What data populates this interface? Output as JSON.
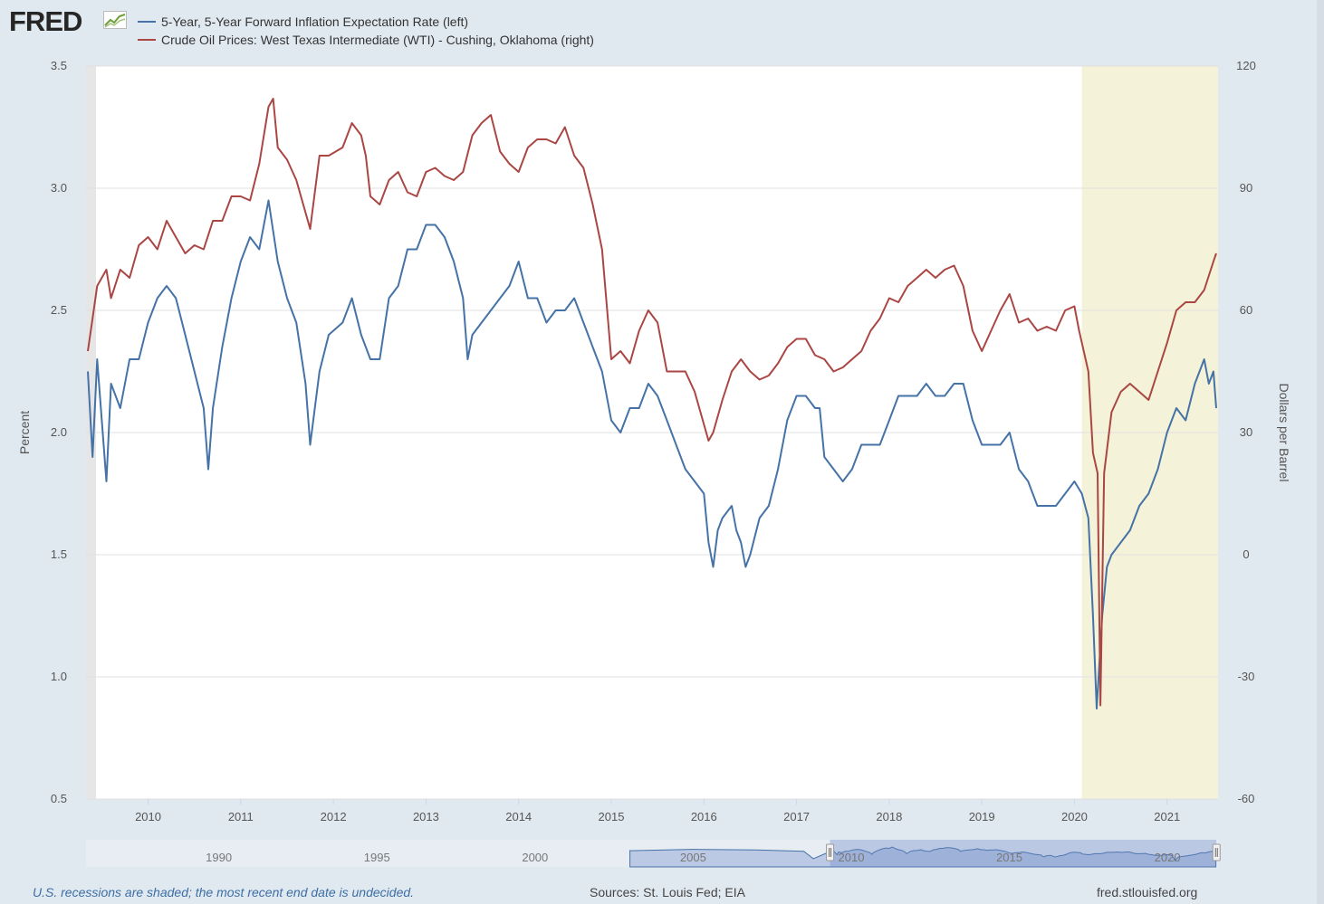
{
  "header": {
    "logo_text": "FRED",
    "logo_icon": "fred-chart-icon",
    "legend": [
      {
        "label": "5-Year, 5-Year Forward Inflation Expectation Rate (left)",
        "color": "#4572a7"
      },
      {
        "label": "Crude Oil Prices: West Texas Intermediate (WTI) - Cushing, Oklahoma (right)",
        "color": "#aa4643"
      }
    ]
  },
  "colors": {
    "plot_bg": "#ffffff",
    "page_bg": "#e1e9f0",
    "recession_shade": "#f4f2d8",
    "pre_range_shade": "#e6e6e6",
    "grid": "#e0e0e0",
    "navigator_fill": "#bcc9e4",
    "navigator_line": "#4572a7"
  },
  "chart_data": {
    "type": "line",
    "x_unit": "year",
    "xlim": [
      2009.33,
      2021.55
    ],
    "x_ticks": [
      "2010",
      "2011",
      "2012",
      "2013",
      "2014",
      "2015",
      "2016",
      "2017",
      "2018",
      "2019",
      "2020",
      "2021"
    ],
    "y_left": {
      "label": "Percent",
      "lim": [
        0.5,
        3.5
      ],
      "ticks": [
        "0.5",
        "1.0",
        "1.5",
        "2.0",
        "2.5",
        "3.0",
        "3.5"
      ]
    },
    "y_right": {
      "label": "Dollars per Barrel",
      "lim": [
        -60,
        120
      ],
      "ticks": [
        "-60",
        "-30",
        "0",
        "30",
        "60",
        "90",
        "120"
      ]
    },
    "recession_shading": [
      [
        2020.08,
        2021.55
      ]
    ],
    "grid": true,
    "legend_position": "top-left",
    "series": [
      {
        "name": "5-Year, 5-Year Forward Inflation Expectation Rate (left)",
        "axis": "left",
        "color": "#4572a7",
        "points": [
          [
            2009.35,
            2.25
          ],
          [
            2009.4,
            1.9
          ],
          [
            2009.45,
            2.3
          ],
          [
            2009.55,
            1.8
          ],
          [
            2009.6,
            2.2
          ],
          [
            2009.7,
            2.1
          ],
          [
            2009.8,
            2.3
          ],
          [
            2009.9,
            2.3
          ],
          [
            2010.0,
            2.45
          ],
          [
            2010.1,
            2.55
          ],
          [
            2010.2,
            2.6
          ],
          [
            2010.3,
            2.55
          ],
          [
            2010.4,
            2.4
          ],
          [
            2010.5,
            2.25
          ],
          [
            2010.6,
            2.1
          ],
          [
            2010.65,
            1.85
          ],
          [
            2010.7,
            2.1
          ],
          [
            2010.8,
            2.35
          ],
          [
            2010.9,
            2.55
          ],
          [
            2011.0,
            2.7
          ],
          [
            2011.1,
            2.8
          ],
          [
            2011.2,
            2.75
          ],
          [
            2011.3,
            2.95
          ],
          [
            2011.4,
            2.7
          ],
          [
            2011.5,
            2.55
          ],
          [
            2011.6,
            2.45
          ],
          [
            2011.7,
            2.2
          ],
          [
            2011.75,
            1.95
          ],
          [
            2011.85,
            2.25
          ],
          [
            2011.95,
            2.4
          ],
          [
            2012.1,
            2.45
          ],
          [
            2012.2,
            2.55
          ],
          [
            2012.3,
            2.4
          ],
          [
            2012.4,
            2.3
          ],
          [
            2012.5,
            2.3
          ],
          [
            2012.6,
            2.55
          ],
          [
            2012.7,
            2.6
          ],
          [
            2012.8,
            2.75
          ],
          [
            2012.9,
            2.75
          ],
          [
            2013.0,
            2.85
          ],
          [
            2013.1,
            2.85
          ],
          [
            2013.2,
            2.8
          ],
          [
            2013.3,
            2.7
          ],
          [
            2013.4,
            2.55
          ],
          [
            2013.45,
            2.3
          ],
          [
            2013.5,
            2.4
          ],
          [
            2013.6,
            2.45
          ],
          [
            2013.7,
            2.5
          ],
          [
            2013.8,
            2.55
          ],
          [
            2013.9,
            2.6
          ],
          [
            2014.0,
            2.7
          ],
          [
            2014.1,
            2.55
          ],
          [
            2014.2,
            2.55
          ],
          [
            2014.3,
            2.45
          ],
          [
            2014.4,
            2.5
          ],
          [
            2014.5,
            2.5
          ],
          [
            2014.6,
            2.55
          ],
          [
            2014.7,
            2.45
          ],
          [
            2014.8,
            2.35
          ],
          [
            2014.9,
            2.25
          ],
          [
            2015.0,
            2.05
          ],
          [
            2015.1,
            2.0
          ],
          [
            2015.2,
            2.1
          ],
          [
            2015.3,
            2.1
          ],
          [
            2015.4,
            2.2
          ],
          [
            2015.5,
            2.15
          ],
          [
            2015.6,
            2.05
          ],
          [
            2015.7,
            1.95
          ],
          [
            2015.8,
            1.85
          ],
          [
            2015.9,
            1.8
          ],
          [
            2016.0,
            1.75
          ],
          [
            2016.05,
            1.55
          ],
          [
            2016.1,
            1.45
          ],
          [
            2016.15,
            1.6
          ],
          [
            2016.2,
            1.65
          ],
          [
            2016.3,
            1.7
          ],
          [
            2016.35,
            1.6
          ],
          [
            2016.4,
            1.55
          ],
          [
            2016.45,
            1.45
          ],
          [
            2016.5,
            1.5
          ],
          [
            2016.6,
            1.65
          ],
          [
            2016.7,
            1.7
          ],
          [
            2016.8,
            1.85
          ],
          [
            2016.9,
            2.05
          ],
          [
            2017.0,
            2.15
          ],
          [
            2017.1,
            2.15
          ],
          [
            2017.2,
            2.1
          ],
          [
            2017.25,
            2.1
          ],
          [
            2017.3,
            1.9
          ],
          [
            2017.4,
            1.85
          ],
          [
            2017.5,
            1.8
          ],
          [
            2017.6,
            1.85
          ],
          [
            2017.7,
            1.95
          ],
          [
            2017.8,
            1.95
          ],
          [
            2017.9,
            1.95
          ],
          [
            2018.0,
            2.05
          ],
          [
            2018.1,
            2.15
          ],
          [
            2018.2,
            2.15
          ],
          [
            2018.3,
            2.15
          ],
          [
            2018.4,
            2.2
          ],
          [
            2018.5,
            2.15
          ],
          [
            2018.6,
            2.15
          ],
          [
            2018.7,
            2.2
          ],
          [
            2018.8,
            2.2
          ],
          [
            2018.9,
            2.05
          ],
          [
            2019.0,
            1.95
          ],
          [
            2019.1,
            1.95
          ],
          [
            2019.2,
            1.95
          ],
          [
            2019.3,
            2.0
          ],
          [
            2019.4,
            1.85
          ],
          [
            2019.5,
            1.8
          ],
          [
            2019.6,
            1.7
          ],
          [
            2019.7,
            1.7
          ],
          [
            2019.8,
            1.7
          ],
          [
            2019.9,
            1.75
          ],
          [
            2020.0,
            1.8
          ],
          [
            2020.08,
            1.75
          ],
          [
            2020.15,
            1.65
          ],
          [
            2020.2,
            1.25
          ],
          [
            2020.24,
            0.87
          ],
          [
            2020.3,
            1.25
          ],
          [
            2020.35,
            1.45
          ],
          [
            2020.4,
            1.5
          ],
          [
            2020.5,
            1.55
          ],
          [
            2020.6,
            1.6
          ],
          [
            2020.7,
            1.7
          ],
          [
            2020.8,
            1.75
          ],
          [
            2020.9,
            1.85
          ],
          [
            2021.0,
            2.0
          ],
          [
            2021.1,
            2.1
          ],
          [
            2021.2,
            2.05
          ],
          [
            2021.3,
            2.2
          ],
          [
            2021.4,
            2.3
          ],
          [
            2021.45,
            2.2
          ],
          [
            2021.5,
            2.25
          ],
          [
            2021.53,
            2.1
          ]
        ]
      },
      {
        "name": "Crude Oil Prices: West Texas Intermediate (WTI) - Cushing, Oklahoma (right)",
        "axis": "right",
        "color": "#aa4643",
        "points": [
          [
            2009.35,
            50
          ],
          [
            2009.4,
            58
          ],
          [
            2009.45,
            66
          ],
          [
            2009.55,
            70
          ],
          [
            2009.6,
            63
          ],
          [
            2009.7,
            70
          ],
          [
            2009.8,
            68
          ],
          [
            2009.9,
            76
          ],
          [
            2010.0,
            78
          ],
          [
            2010.1,
            75
          ],
          [
            2010.2,
            82
          ],
          [
            2010.3,
            78
          ],
          [
            2010.4,
            74
          ],
          [
            2010.5,
            76
          ],
          [
            2010.6,
            75
          ],
          [
            2010.7,
            82
          ],
          [
            2010.8,
            82
          ],
          [
            2010.9,
            88
          ],
          [
            2011.0,
            88
          ],
          [
            2011.1,
            87
          ],
          [
            2011.2,
            96
          ],
          [
            2011.3,
            110
          ],
          [
            2011.35,
            112
          ],
          [
            2011.4,
            100
          ],
          [
            2011.5,
            97
          ],
          [
            2011.6,
            92
          ],
          [
            2011.7,
            84
          ],
          [
            2011.75,
            80
          ],
          [
            2011.85,
            98
          ],
          [
            2011.95,
            98
          ],
          [
            2012.1,
            100
          ],
          [
            2012.2,
            106
          ],
          [
            2012.3,
            103
          ],
          [
            2012.35,
            98
          ],
          [
            2012.4,
            88
          ],
          [
            2012.5,
            86
          ],
          [
            2012.6,
            92
          ],
          [
            2012.7,
            94
          ],
          [
            2012.8,
            89
          ],
          [
            2012.9,
            88
          ],
          [
            2013.0,
            94
          ],
          [
            2013.1,
            95
          ],
          [
            2013.2,
            93
          ],
          [
            2013.3,
            92
          ],
          [
            2013.4,
            94
          ],
          [
            2013.5,
            103
          ],
          [
            2013.6,
            106
          ],
          [
            2013.7,
            108
          ],
          [
            2013.8,
            99
          ],
          [
            2013.9,
            96
          ],
          [
            2014.0,
            94
          ],
          [
            2014.1,
            100
          ],
          [
            2014.2,
            102
          ],
          [
            2014.3,
            102
          ],
          [
            2014.4,
            101
          ],
          [
            2014.5,
            105
          ],
          [
            2014.6,
            98
          ],
          [
            2014.7,
            95
          ],
          [
            2014.8,
            86
          ],
          [
            2014.9,
            75
          ],
          [
            2015.0,
            48
          ],
          [
            2015.1,
            50
          ],
          [
            2015.2,
            47
          ],
          [
            2015.3,
            55
          ],
          [
            2015.4,
            60
          ],
          [
            2015.5,
            57
          ],
          [
            2015.6,
            45
          ],
          [
            2015.7,
            45
          ],
          [
            2015.8,
            45
          ],
          [
            2015.9,
            40
          ],
          [
            2016.0,
            32
          ],
          [
            2016.05,
            28
          ],
          [
            2016.1,
            30
          ],
          [
            2016.2,
            38
          ],
          [
            2016.3,
            45
          ],
          [
            2016.4,
            48
          ],
          [
            2016.5,
            45
          ],
          [
            2016.6,
            43
          ],
          [
            2016.7,
            44
          ],
          [
            2016.8,
            47
          ],
          [
            2016.9,
            51
          ],
          [
            2017.0,
            53
          ],
          [
            2017.1,
            53
          ],
          [
            2017.2,
            49
          ],
          [
            2017.3,
            48
          ],
          [
            2017.4,
            45
          ],
          [
            2017.5,
            46
          ],
          [
            2017.6,
            48
          ],
          [
            2017.7,
            50
          ],
          [
            2017.8,
            55
          ],
          [
            2017.9,
            58
          ],
          [
            2018.0,
            63
          ],
          [
            2018.1,
            62
          ],
          [
            2018.2,
            66
          ],
          [
            2018.3,
            68
          ],
          [
            2018.4,
            70
          ],
          [
            2018.5,
            68
          ],
          [
            2018.6,
            70
          ],
          [
            2018.7,
            71
          ],
          [
            2018.8,
            66
          ],
          [
            2018.9,
            55
          ],
          [
            2019.0,
            50
          ],
          [
            2019.1,
            55
          ],
          [
            2019.2,
            60
          ],
          [
            2019.3,
            64
          ],
          [
            2019.4,
            57
          ],
          [
            2019.5,
            58
          ],
          [
            2019.6,
            55
          ],
          [
            2019.7,
            56
          ],
          [
            2019.8,
            55
          ],
          [
            2019.9,
            60
          ],
          [
            2020.0,
            61
          ],
          [
            2020.05,
            55
          ],
          [
            2020.15,
            45
          ],
          [
            2020.2,
            25
          ],
          [
            2020.25,
            20
          ],
          [
            2020.28,
            -37
          ],
          [
            2020.32,
            20
          ],
          [
            2020.4,
            35
          ],
          [
            2020.5,
            40
          ],
          [
            2020.6,
            42
          ],
          [
            2020.7,
            40
          ],
          [
            2020.8,
            38
          ],
          [
            2020.9,
            45
          ],
          [
            2021.0,
            52
          ],
          [
            2021.1,
            60
          ],
          [
            2021.2,
            62
          ],
          [
            2021.3,
            62
          ],
          [
            2021.4,
            65
          ],
          [
            2021.5,
            72
          ],
          [
            2021.53,
            74
          ]
        ]
      }
    ]
  },
  "navigator": {
    "ticks": [
      "1990",
      "1995",
      "2000",
      "2005",
      "2010",
      "2015",
      "2020"
    ],
    "xlim": [
      1985.8,
      2021.6
    ],
    "selected_range": [
      2009.33,
      2021.55
    ]
  },
  "footer": {
    "note": "U.S. recessions are shaded; the most recent end date is undecided.",
    "sources": "Sources: St. Louis Fed; EIA",
    "site": "fred.stlouisfed.org"
  }
}
